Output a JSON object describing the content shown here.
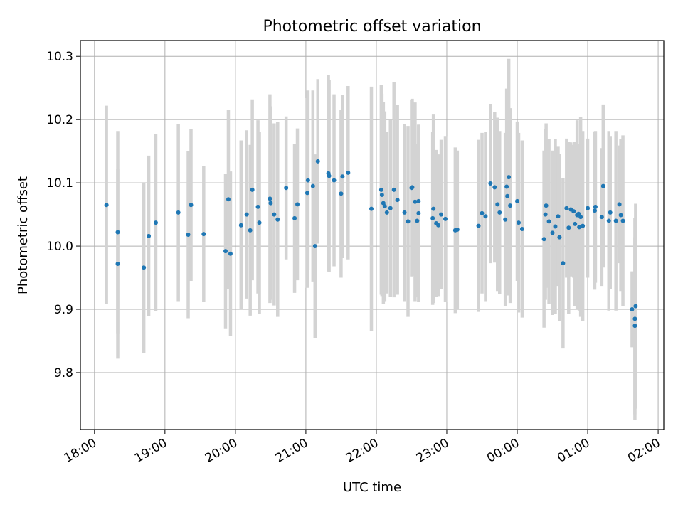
{
  "chart_data": {
    "type": "scatter",
    "title": "Photometric offset variation",
    "xlabel": "UTC time",
    "ylabel": "Photometric offset",
    "x_ticks": [
      "18:00",
      "19:00",
      "20:00",
      "21:00",
      "22:00",
      "23:00",
      "00:00",
      "01:00",
      "02:00"
    ],
    "y_ticks": [
      "9.8",
      "9.9",
      "10.0",
      "10.1",
      "10.2",
      "10.3"
    ],
    "xlim_hours": [
      17.8,
      26.08
    ],
    "ylim": [
      9.71,
      10.325
    ],
    "grid": true,
    "colors": {
      "points": "#1f77b4",
      "errorbars": "#d3d3d3",
      "grid": "#b0b0b0"
    },
    "series": [
      {
        "x": [
          18.17,
          18.33,
          18.33,
          18.7,
          18.77,
          18.87,
          19.19,
          19.33,
          19.37,
          19.55,
          19.86,
          19.9,
          19.93,
          20.08,
          20.16,
          20.21,
          20.24,
          20.32,
          20.34,
          20.49,
          20.5,
          20.55,
          20.6,
          20.72,
          20.84,
          20.88,
          21.02,
          21.03,
          21.1,
          21.13,
          21.17,
          21.32,
          21.33,
          21.4,
          21.5,
          21.52,
          21.6,
          21.93,
          22.07,
          22.08,
          22.1,
          22.12,
          22.15,
          22.2,
          22.25,
          22.3,
          22.4,
          22.45,
          22.5,
          22.51,
          22.55,
          22.58,
          22.6,
          22.6,
          22.8,
          22.81,
          22.85,
          22.88,
          22.92,
          22.98,
          23.12,
          23.15,
          23.45,
          23.5,
          23.55,
          23.62,
          23.68,
          23.72,
          23.75,
          23.83,
          23.85,
          23.86,
          23.88,
          23.9,
          24.0,
          24.02,
          24.07,
          24.38,
          24.4,
          24.41,
          24.45,
          24.5,
          24.54,
          24.58,
          24.6,
          24.65,
          24.7,
          24.73,
          24.76,
          24.8,
          24.82,
          24.85,
          24.87,
          24.88,
          24.9,
          24.93,
          25.0,
          25.1,
          25.11,
          25.2,
          25.22,
          25.3,
          25.32,
          25.4,
          25.45,
          25.47,
          25.5,
          25.63,
          25.67,
          25.67,
          25.68
        ],
        "y": [
          10.065,
          9.972,
          10.022,
          9.966,
          10.016,
          10.037,
          10.053,
          10.018,
          10.065,
          10.019,
          9.992,
          10.074,
          9.988,
          10.033,
          10.05,
          10.025,
          10.089,
          10.062,
          10.037,
          10.075,
          10.068,
          10.05,
          10.042,
          10.092,
          10.044,
          10.066,
          10.084,
          10.104,
          10.095,
          10.0,
          10.134,
          10.115,
          10.111,
          10.104,
          10.083,
          10.11,
          10.116,
          10.059,
          10.089,
          10.081,
          10.068,
          10.063,
          10.053,
          10.06,
          10.089,
          10.073,
          10.053,
          10.039,
          10.092,
          10.093,
          10.07,
          10.04,
          10.052,
          10.071,
          10.044,
          10.059,
          10.036,
          10.033,
          10.05,
          10.043,
          10.025,
          10.026,
          10.032,
          10.052,
          10.047,
          10.099,
          10.093,
          10.066,
          10.053,
          10.042,
          10.094,
          10.079,
          10.109,
          10.064,
          10.071,
          10.037,
          10.027,
          10.011,
          10.05,
          10.064,
          10.039,
          10.021,
          10.031,
          10.047,
          10.014,
          9.973,
          10.06,
          10.029,
          10.058,
          10.055,
          10.035,
          10.049,
          10.051,
          10.03,
          10.046,
          10.032,
          10.06,
          10.056,
          10.062,
          10.046,
          10.095,
          10.04,
          10.053,
          10.04,
          10.066,
          10.049,
          10.04,
          9.9,
          9.874,
          9.885,
          9.905
        ],
        "err": [
          0.157,
          0.15,
          0.16,
          0.135,
          0.127,
          0.14,
          0.14,
          0.132,
          0.12,
          0.107,
          0.122,
          0.142,
          0.13,
          0.134,
          0.133,
          0.135,
          0.143,
          0.137,
          0.144,
          0.165,
          0.153,
          0.144,
          0.154,
          0.113,
          0.118,
          0.12,
          0.15,
          0.142,
          0.151,
          0.145,
          0.13,
          0.155,
          0.152,
          0.136,
          0.133,
          0.129,
          0.137,
          0.193,
          0.166,
          0.16,
          0.16,
          0.15,
          0.128,
          0.14,
          0.17,
          0.15,
          0.14,
          0.151,
          0.14,
          0.14,
          0.157,
          0.121,
          0.14,
          0.12,
          0.137,
          0.149,
          0.116,
          0.112,
          0.118,
          0.131,
          0.131,
          0.125,
          0.136,
          0.127,
          0.134,
          0.126,
          0.119,
          0.137,
          0.129,
          0.137,
          0.155,
          0.149,
          0.187,
          0.154,
          0.126,
          0.142,
          0.14,
          0.14,
          0.135,
          0.13,
          0.13,
          0.13,
          0.138,
          0.11,
          0.132,
          0.135,
          0.11,
          0.136,
          0.106,
          0.105,
          0.13,
          0.15,
          0.11,
          0.132,
          0.158,
          0.15,
          0.11,
          0.125,
          0.12,
          0.109,
          0.129,
          0.142,
          0.121,
          0.142,
          0.093,
          0.12,
          0.135,
          0.06,
          0.14,
          0.16,
          0.162
        ]
      }
    ]
  }
}
